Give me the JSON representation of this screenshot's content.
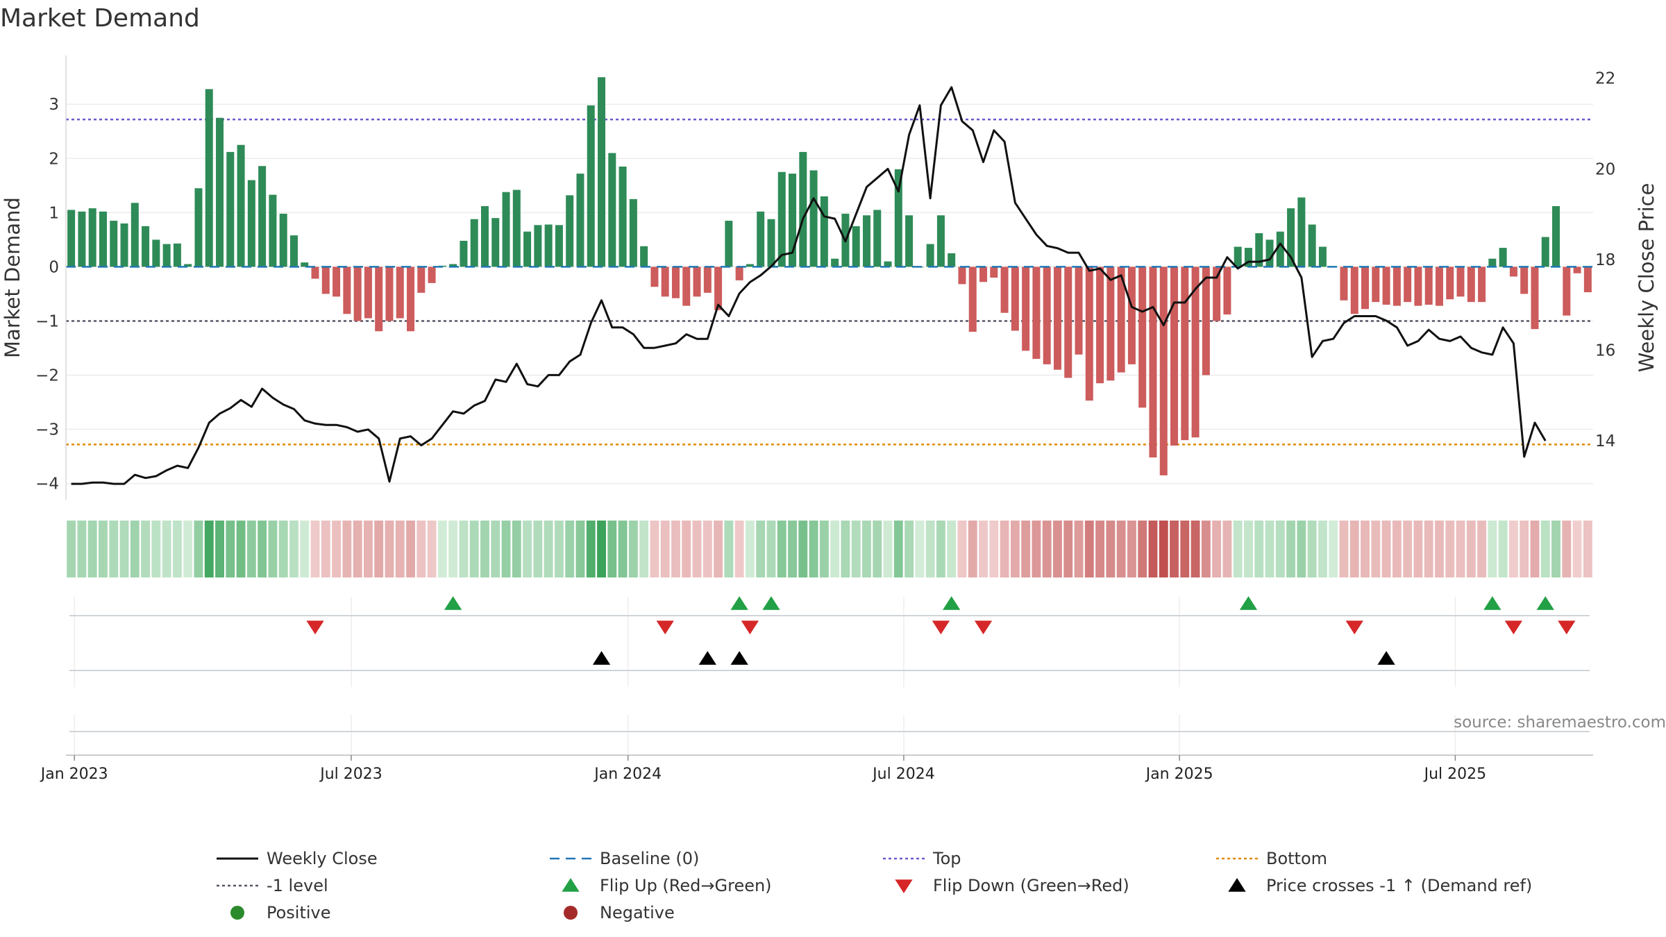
{
  "chart_data": {
    "type": "bar",
    "title": "Market Demand",
    "ylabel": "Market Demand",
    "y2label": "Weekly Close Price",
    "ylim": [
      -4.3,
      3.9
    ],
    "y2lim": [
      12.7,
      22.5
    ],
    "yticks": [
      "3",
      "2",
      "1",
      "0",
      "−1",
      "−2",
      "−3",
      "−4"
    ],
    "y2ticks": [
      "22",
      "20",
      "18",
      "16",
      "14"
    ],
    "xticks": [
      "Jan 2023",
      "Jul 2023",
      "Jan 2024",
      "Jul 2024",
      "Jan 2025",
      "Jul 2025"
    ],
    "levels": {
      "top": 2.72,
      "minus_one": -1.0,
      "bottom": -3.28,
      "baseline": 0
    },
    "source": "source: sharemaestro.com",
    "colors": {
      "positive": "#2e8b57",
      "negative": "#cd5c5c",
      "price": "#111111",
      "top": "#6a5acd",
      "minus_one": "#555566",
      "bottom": "#e08a00",
      "baseline": "#1f77b4",
      "flip_up": "#22a045",
      "flip_down": "#d62728",
      "cross": "#000000"
    },
    "series": [
      {
        "name": "Market Demand",
        "values": [
          1.05,
          1.02,
          1.08,
          1.02,
          0.85,
          0.8,
          1.18,
          0.75,
          0.5,
          0.42,
          0.43,
          0.05,
          1.45,
          3.28,
          2.75,
          2.12,
          2.25,
          1.6,
          1.86,
          1.33,
          0.98,
          0.58,
          0.08,
          -0.22,
          -0.5,
          -0.55,
          -0.87,
          -1.0,
          -0.95,
          -1.19,
          -1.0,
          -0.95,
          -1.19,
          -0.48,
          -0.3,
          0.02,
          0.05,
          0.48,
          0.88,
          1.12,
          0.9,
          1.38,
          1.42,
          0.65,
          0.77,
          0.78,
          0.77,
          1.32,
          1.72,
          2.98,
          3.5,
          2.1,
          1.85,
          1.25,
          0.38,
          -0.37,
          -0.55,
          -0.58,
          -0.72,
          -0.55,
          -0.48,
          -0.8,
          0.85,
          -0.25,
          0.05,
          1.02,
          0.88,
          1.75,
          1.72,
          2.12,
          1.78,
          1.3,
          0.15,
          0.98,
          0.75,
          0.95,
          1.05,
          0.1,
          1.8,
          0.95,
          0.0,
          0.42,
          0.95,
          0.25,
          -0.32,
          -1.2,
          -0.28,
          -0.2,
          -0.85,
          -1.18,
          -1.55,
          -1.7,
          -1.8,
          -1.9,
          -2.05,
          -1.62,
          -2.47,
          -2.15,
          -2.1,
          -1.95,
          -1.8,
          -2.6,
          -3.52,
          -3.85,
          -3.3,
          -3.2,
          -3.15,
          -2.0,
          -1.0,
          -0.88,
          0.37,
          0.35,
          0.62,
          0.5,
          0.65,
          1.08,
          1.28,
          0.78,
          0.37,
          0.0,
          -0.62,
          -0.87,
          -0.78,
          -0.65,
          -0.7,
          -0.72,
          -0.65,
          -0.72,
          -0.7,
          -0.72,
          -0.6,
          -0.55,
          -0.65,
          -0.65,
          0.15,
          0.35,
          -0.18,
          -0.5,
          -1.15,
          0.55,
          1.12,
          -0.9,
          -0.12,
          -0.47
        ]
      },
      {
        "name": "Weekly Close",
        "axis": "right",
        "values": [
          13.05,
          13.05,
          13.08,
          13.08,
          13.05,
          13.05,
          13.25,
          13.18,
          13.22,
          13.35,
          13.45,
          13.4,
          13.85,
          14.4,
          14.6,
          14.72,
          14.9,
          14.75,
          15.15,
          14.95,
          14.8,
          14.7,
          14.45,
          14.38,
          14.35,
          14.35,
          14.3,
          14.2,
          14.25,
          14.05,
          13.1,
          14.05,
          14.1,
          13.9,
          14.05,
          14.35,
          14.65,
          14.6,
          14.78,
          14.88,
          15.35,
          15.3,
          15.7,
          15.25,
          15.2,
          15.45,
          15.45,
          15.75,
          15.9,
          16.6,
          17.1,
          16.5,
          16.5,
          16.35,
          16.05,
          16.05,
          16.1,
          16.15,
          16.35,
          16.25,
          16.25,
          17.0,
          16.75,
          17.25,
          17.5,
          17.65,
          17.85,
          18.1,
          18.15,
          18.9,
          19.35,
          18.95,
          18.9,
          18.4,
          19.0,
          19.6,
          19.8,
          20.0,
          19.5,
          20.75,
          21.4,
          19.35,
          21.4,
          21.8,
          21.05,
          20.85,
          20.15,
          20.85,
          20.6,
          19.25,
          18.9,
          18.55,
          18.3,
          18.25,
          18.15,
          18.15,
          17.75,
          17.8,
          17.55,
          17.65,
          16.95,
          16.85,
          16.95,
          16.55,
          17.05,
          17.05,
          17.35,
          17.6,
          17.6,
          18.05,
          17.8,
          17.95,
          17.95,
          18.0,
          18.35,
          18.05,
          17.6,
          15.85,
          16.2,
          16.25,
          16.6,
          16.75,
          16.75,
          16.75,
          16.65,
          16.5,
          16.1,
          16.2,
          16.45,
          16.25,
          16.2,
          16.3,
          16.05,
          15.95,
          15.9,
          16.5,
          16.15,
          13.65,
          14.4,
          14.0
        ]
      }
    ],
    "markers": {
      "flip_up_weeks": [
        36,
        63,
        66,
        83,
        111,
        134,
        139
      ],
      "flip_down_weeks": [
        23,
        56,
        64,
        82,
        86,
        121,
        136,
        141
      ],
      "cross_weeks": [
        50,
        60,
        63,
        124
      ]
    },
    "legend": [
      "Weekly Close",
      "Baseline (0)",
      "Top",
      "Bottom",
      "-1 level",
      "Flip Up (Red→Green)",
      "Flip Down (Green→Red)",
      "Price crosses -1 ↑ (Demand ref)",
      "Positive",
      "Negative"
    ]
  }
}
